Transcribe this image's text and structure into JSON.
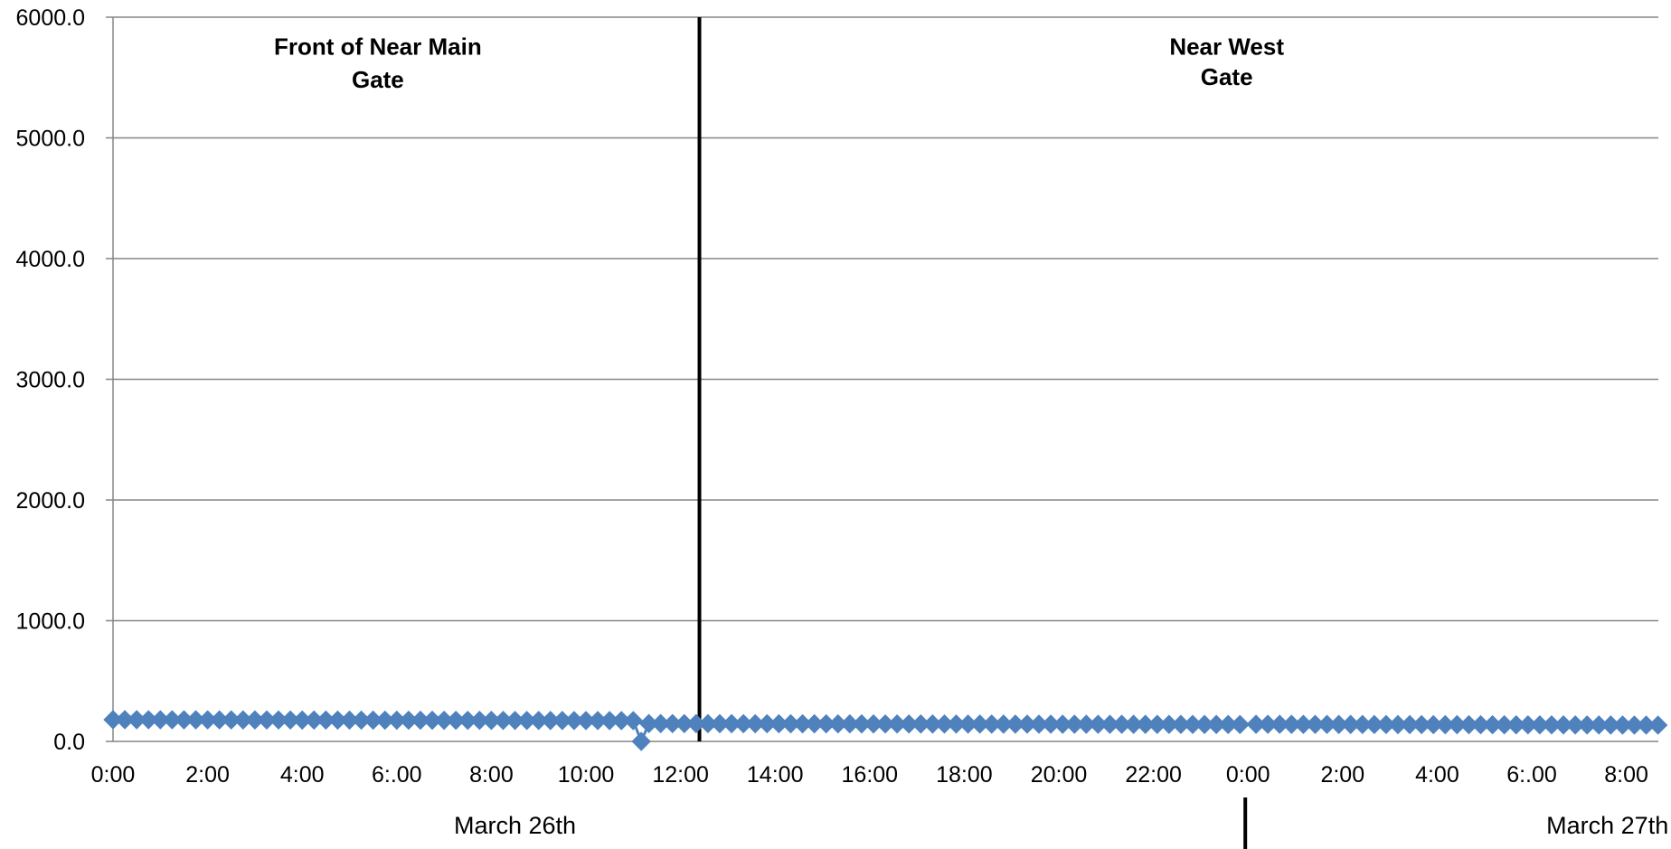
{
  "chart_data": {
    "type": "scatter",
    "y_range": [
      0,
      6000
    ],
    "y_ticks": [
      "0.0",
      "1000.0",
      "2000.0",
      "3000.0",
      "4000.0",
      "5000.0",
      "6000.0"
    ],
    "x_range_hours": [
      0,
      32.6
    ],
    "x_ticks": [
      {
        "hour": 0,
        "label": "0:00"
      },
      {
        "hour": 2,
        "label": "2:00"
      },
      {
        "hour": 4,
        "label": "4:00"
      },
      {
        "hour": 6,
        "label": "6:.00"
      },
      {
        "hour": 8,
        "label": "8:00"
      },
      {
        "hour": 10,
        "label": "10:00"
      },
      {
        "hour": 12,
        "label": "12:00"
      },
      {
        "hour": 14,
        "label": "14:00"
      },
      {
        "hour": 16,
        "label": "16:00"
      },
      {
        "hour": 18,
        "label": "18:00"
      },
      {
        "hour": 20,
        "label": "20:00"
      },
      {
        "hour": 22,
        "label": "22:00"
      },
      {
        "hour": 24,
        "label": "0:00"
      },
      {
        "hour": 26,
        "label": "2:00"
      },
      {
        "hour": 28,
        "label": "4:00"
      },
      {
        "hour": 30,
        "label": "6:.00"
      },
      {
        "hour": 32,
        "label": "8:00"
      }
    ],
    "grid": true,
    "marker": "diamond",
    "series_color": "#4F81BD",
    "series": [
      {
        "segments": [
          {
            "start_hour": 0.0,
            "end_hour": 11.0,
            "step_hours": 0.25,
            "y_start": 180,
            "y_end": 172
          },
          {
            "start_hour": 11.17,
            "end_hour": 11.17,
            "step_hours": 0.25,
            "y_start": 0,
            "y_end": 0
          },
          {
            "start_hour": 11.33,
            "end_hour": 23.95,
            "step_hours": 0.25,
            "y_start": 148,
            "y_end": 140
          },
          {
            "start_hour": 24.17,
            "end_hour": 32.55,
            "step_hours": 0.25,
            "y_start": 142,
            "y_end": 135
          }
        ]
      }
    ],
    "annotations": [
      {
        "text": "Front of Near Main",
        "x_hour": 5.6,
        "y_value": 5690
      },
      {
        "text": "Gate",
        "x_hour": 5.6,
        "y_value": 5415
      },
      {
        "text": "Near West",
        "x_hour": 23.55,
        "y_value": 5690
      },
      {
        "text": "Gate",
        "x_hour": 23.55,
        "y_value": 5440
      }
    ],
    "divider_hour": 12.4,
    "date_divider_hour": 24.0,
    "date_labels": [
      {
        "text": "March 26th",
        "x_hour": 8.5
      },
      {
        "text": "March 27th",
        "x_hour": 31.6
      }
    ]
  }
}
